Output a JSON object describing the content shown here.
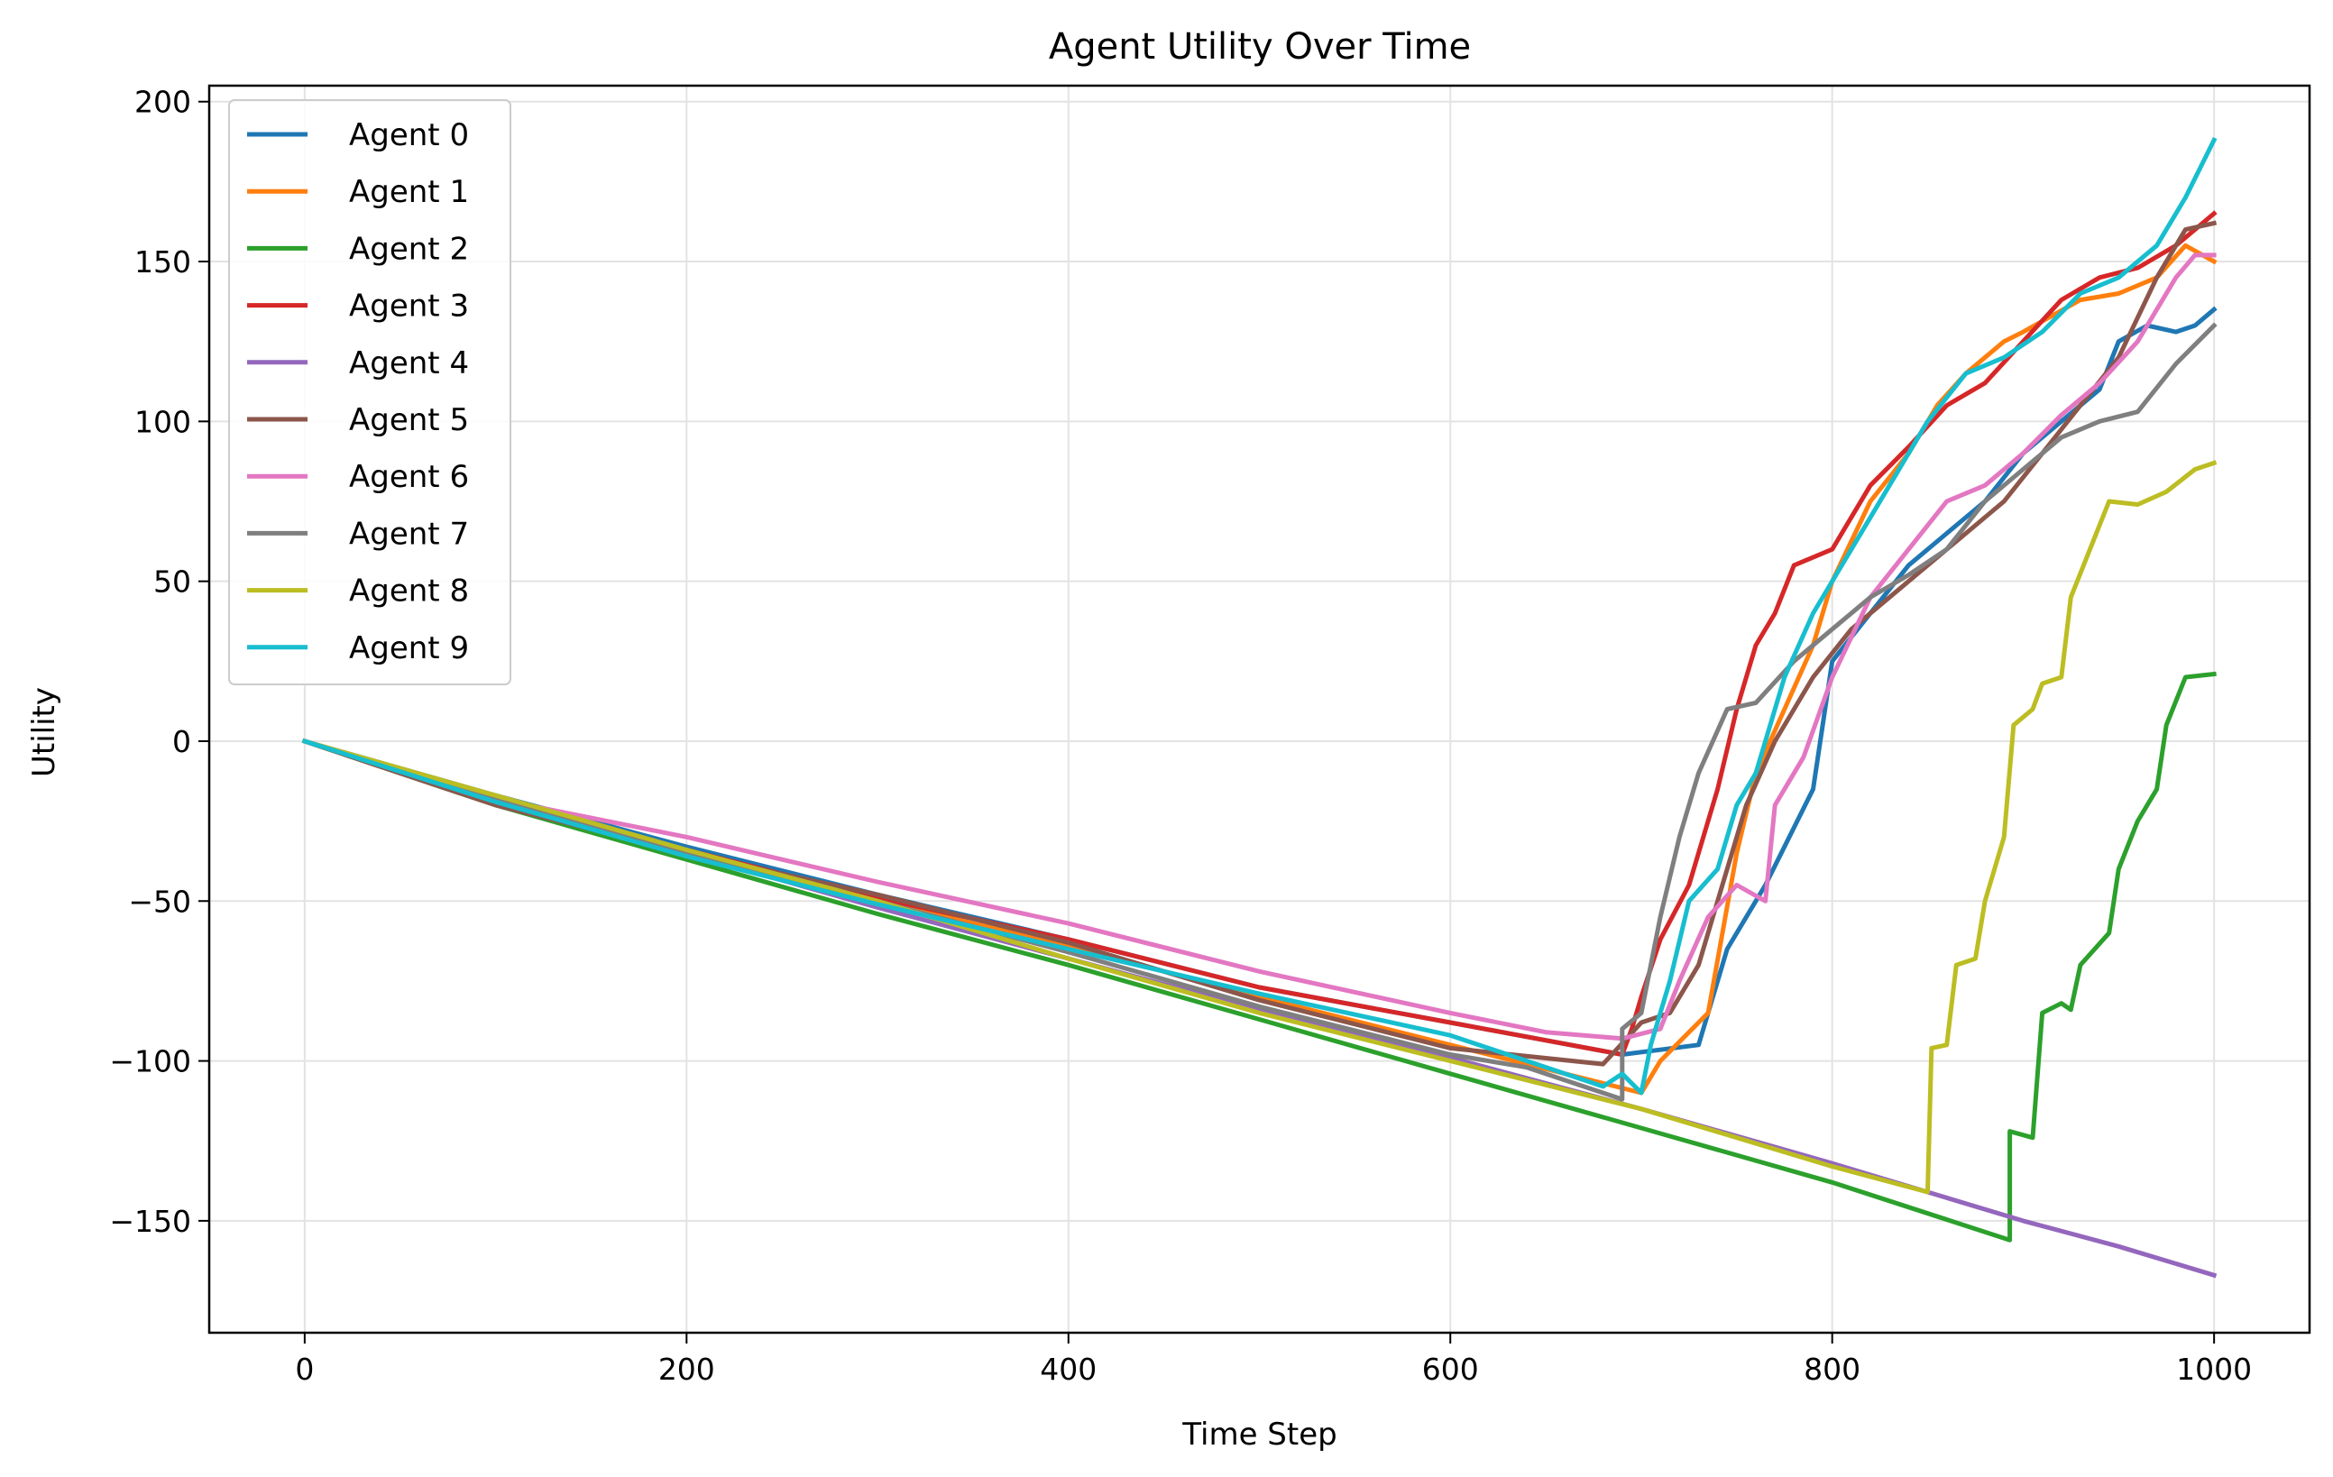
{
  "chart_data": {
    "type": "line",
    "title": "Agent Utility Over Time",
    "xlabel": "Time Step",
    "ylabel": "Utility",
    "xlim": [
      -50,
      1050
    ],
    "ylim": [
      -185,
      205
    ],
    "xticks": [
      0,
      200,
      400,
      600,
      800,
      1000
    ],
    "yticks": [
      -150,
      -100,
      -50,
      0,
      50,
      100,
      150,
      200
    ],
    "xtick_labels": [
      "0",
      "200",
      "400",
      "600",
      "800",
      "1000"
    ],
    "ytick_labels": [
      "−150",
      "−100",
      "−50",
      "0",
      "50",
      "100",
      "150",
      "200"
    ],
    "grid": true,
    "legend_position": "upper-left",
    "series": [
      {
        "name": "Agent 0",
        "color": "#1f77b4",
        "points": [
          [
            0,
            0
          ],
          [
            100,
            -17
          ],
          [
            200,
            -33
          ],
          [
            300,
            -48
          ],
          [
            400,
            -62
          ],
          [
            500,
            -77
          ],
          [
            600,
            -88
          ],
          [
            690,
            -98
          ],
          [
            730,
            -95
          ],
          [
            745,
            -65
          ],
          [
            765,
            -45
          ],
          [
            790,
            -15
          ],
          [
            800,
            25
          ],
          [
            820,
            40
          ],
          [
            840,
            55
          ],
          [
            860,
            65
          ],
          [
            880,
            75
          ],
          [
            900,
            90
          ],
          [
            920,
            100
          ],
          [
            940,
            110
          ],
          [
            950,
            125
          ],
          [
            965,
            130
          ],
          [
            980,
            128
          ],
          [
            990,
            130
          ],
          [
            1000,
            135
          ]
        ]
      },
      {
        "name": "Agent 1",
        "color": "#ff7f0e",
        "points": [
          [
            0,
            0
          ],
          [
            100,
            -18
          ],
          [
            200,
            -35
          ],
          [
            300,
            -50
          ],
          [
            400,
            -64
          ],
          [
            500,
            -80
          ],
          [
            600,
            -95
          ],
          [
            700,
            -110
          ],
          [
            710,
            -100
          ],
          [
            735,
            -85
          ],
          [
            750,
            -35
          ],
          [
            760,
            -10
          ],
          [
            775,
            10
          ],
          [
            790,
            30
          ],
          [
            800,
            50
          ],
          [
            820,
            75
          ],
          [
            840,
            90
          ],
          [
            855,
            105
          ],
          [
            870,
            115
          ],
          [
            890,
            125
          ],
          [
            900,
            128
          ],
          [
            930,
            138
          ],
          [
            950,
            140
          ],
          [
            970,
            145
          ],
          [
            985,
            155
          ],
          [
            1000,
            150
          ]
        ]
      },
      {
        "name": "Agent 2",
        "color": "#2ca02c",
        "points": [
          [
            0,
            0
          ],
          [
            100,
            -20
          ],
          [
            200,
            -37
          ],
          [
            300,
            -54
          ],
          [
            400,
            -70
          ],
          [
            500,
            -87
          ],
          [
            600,
            -104
          ],
          [
            700,
            -121
          ],
          [
            800,
            -138
          ],
          [
            893,
            -156
          ],
          [
            893,
            -122
          ],
          [
            905,
            -124
          ],
          [
            910,
            -85
          ],
          [
            920,
            -82
          ],
          [
            925,
            -84
          ],
          [
            930,
            -70
          ],
          [
            945,
            -60
          ],
          [
            950,
            -40
          ],
          [
            960,
            -25
          ],
          [
            970,
            -15
          ],
          [
            975,
            5
          ],
          [
            985,
            20
          ],
          [
            1000,
            21
          ]
        ]
      },
      {
        "name": "Agent 3",
        "color": "#d62728",
        "points": [
          [
            0,
            0
          ],
          [
            100,
            -18
          ],
          [
            200,
            -34
          ],
          [
            300,
            -49
          ],
          [
            400,
            -62
          ],
          [
            500,
            -77
          ],
          [
            600,
            -88
          ],
          [
            690,
            -98
          ],
          [
            695,
            -90
          ],
          [
            700,
            -80
          ],
          [
            710,
            -62
          ],
          [
            725,
            -45
          ],
          [
            740,
            -15
          ],
          [
            750,
            10
          ],
          [
            760,
            30
          ],
          [
            770,
            40
          ],
          [
            780,
            55
          ],
          [
            800,
            60
          ],
          [
            820,
            80
          ],
          [
            840,
            92
          ],
          [
            860,
            105
          ],
          [
            880,
            112
          ],
          [
            900,
            125
          ],
          [
            920,
            138
          ],
          [
            940,
            145
          ],
          [
            960,
            148
          ],
          [
            980,
            155
          ],
          [
            1000,
            165
          ]
        ]
      },
      {
        "name": "Agent 4",
        "color": "#9467bd",
        "points": [
          [
            0,
            0
          ],
          [
            100,
            -18
          ],
          [
            200,
            -35
          ],
          [
            300,
            -52
          ],
          [
            400,
            -68
          ],
          [
            500,
            -84
          ],
          [
            600,
            -99
          ],
          [
            700,
            -115
          ],
          [
            800,
            -132
          ],
          [
            850,
            -141
          ],
          [
            900,
            -150
          ],
          [
            950,
            -158
          ],
          [
            1000,
            -167
          ]
        ]
      },
      {
        "name": "Agent 5",
        "color": "#8c564b",
        "points": [
          [
            0,
            0
          ],
          [
            100,
            -20
          ],
          [
            200,
            -35
          ],
          [
            300,
            -48
          ],
          [
            400,
            -63
          ],
          [
            500,
            -81
          ],
          [
            600,
            -96
          ],
          [
            680,
            -101
          ],
          [
            700,
            -88
          ],
          [
            715,
            -85
          ],
          [
            730,
            -70
          ],
          [
            740,
            -50
          ],
          [
            755,
            -20
          ],
          [
            770,
            0
          ],
          [
            790,
            20
          ],
          [
            810,
            35
          ],
          [
            830,
            45
          ],
          [
            850,
            55
          ],
          [
            870,
            65
          ],
          [
            890,
            75
          ],
          [
            910,
            90
          ],
          [
            930,
            105
          ],
          [
            950,
            120
          ],
          [
            970,
            145
          ],
          [
            985,
            160
          ],
          [
            1000,
            162
          ]
        ]
      },
      {
        "name": "Agent 6",
        "color": "#e377c2",
        "points": [
          [
            0,
            0
          ],
          [
            100,
            -18
          ],
          [
            200,
            -30
          ],
          [
            300,
            -44
          ],
          [
            400,
            -57
          ],
          [
            500,
            -72
          ],
          [
            600,
            -85
          ],
          [
            650,
            -91
          ],
          [
            690,
            -93
          ],
          [
            710,
            -90
          ],
          [
            720,
            -75
          ],
          [
            735,
            -55
          ],
          [
            750,
            -45
          ],
          [
            765,
            -50
          ],
          [
            770,
            -20
          ],
          [
            785,
            -5
          ],
          [
            800,
            20
          ],
          [
            820,
            45
          ],
          [
            840,
            60
          ],
          [
            860,
            75
          ],
          [
            880,
            80
          ],
          [
            900,
            90
          ],
          [
            920,
            102
          ],
          [
            940,
            112
          ],
          [
            960,
            125
          ],
          [
            980,
            145
          ],
          [
            990,
            152
          ],
          [
            1000,
            152
          ]
        ]
      },
      {
        "name": "Agent 7",
        "color": "#7f7f7f",
        "points": [
          [
            0,
            0
          ],
          [
            100,
            -18
          ],
          [
            200,
            -35
          ],
          [
            300,
            -50
          ],
          [
            400,
            -66
          ],
          [
            500,
            -83
          ],
          [
            600,
            -98
          ],
          [
            640,
            -102
          ],
          [
            690,
            -112
          ],
          [
            690,
            -90
          ],
          [
            700,
            -85
          ],
          [
            710,
            -55
          ],
          [
            720,
            -30
          ],
          [
            730,
            -10
          ],
          [
            745,
            10
          ],
          [
            760,
            12
          ],
          [
            780,
            25
          ],
          [
            800,
            35
          ],
          [
            820,
            45
          ],
          [
            840,
            52
          ],
          [
            860,
            60
          ],
          [
            880,
            75
          ],
          [
            900,
            85
          ],
          [
            920,
            95
          ],
          [
            940,
            100
          ],
          [
            960,
            103
          ],
          [
            980,
            118
          ],
          [
            1000,
            130
          ]
        ]
      },
      {
        "name": "Agent 8",
        "color": "#bcbd22",
        "points": [
          [
            0,
            0
          ],
          [
            100,
            -17
          ],
          [
            200,
            -34
          ],
          [
            300,
            -50
          ],
          [
            400,
            -68
          ],
          [
            500,
            -85
          ],
          [
            600,
            -100
          ],
          [
            700,
            -115
          ],
          [
            800,
            -133
          ],
          [
            850,
            -141
          ],
          [
            852,
            -96
          ],
          [
            860,
            -95
          ],
          [
            865,
            -70
          ],
          [
            875,
            -68
          ],
          [
            880,
            -50
          ],
          [
            890,
            -30
          ],
          [
            895,
            5
          ],
          [
            905,
            10
          ],
          [
            910,
            18
          ],
          [
            920,
            20
          ],
          [
            925,
            45
          ],
          [
            935,
            60
          ],
          [
            945,
            75
          ],
          [
            960,
            74
          ],
          [
            975,
            78
          ],
          [
            990,
            85
          ],
          [
            1000,
            87
          ]
        ]
      },
      {
        "name": "Agent 9",
        "color": "#17becf",
        "points": [
          [
            0,
            0
          ],
          [
            100,
            -19
          ],
          [
            200,
            -36
          ],
          [
            300,
            -51
          ],
          [
            400,
            -65
          ],
          [
            500,
            -79
          ],
          [
            600,
            -92
          ],
          [
            680,
            -108
          ],
          [
            690,
            -104
          ],
          [
            700,
            -110
          ],
          [
            705,
            -95
          ],
          [
            715,
            -75
          ],
          [
            725,
            -50
          ],
          [
            740,
            -40
          ],
          [
            750,
            -20
          ],
          [
            760,
            -10
          ],
          [
            775,
            20
          ],
          [
            790,
            40
          ],
          [
            810,
            60
          ],
          [
            830,
            80
          ],
          [
            850,
            100
          ],
          [
            870,
            115
          ],
          [
            890,
            120
          ],
          [
            910,
            128
          ],
          [
            930,
            140
          ],
          [
            950,
            145
          ],
          [
            970,
            155
          ],
          [
            985,
            170
          ],
          [
            1000,
            188
          ]
        ]
      }
    ]
  }
}
